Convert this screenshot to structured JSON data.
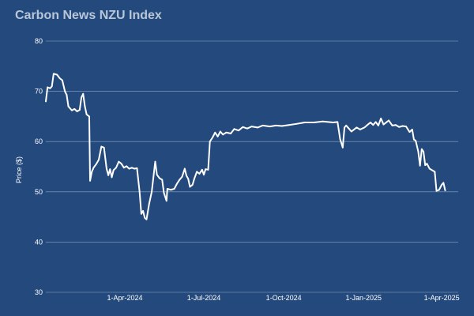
{
  "chart_data": {
    "type": "line",
    "title": "Carbon News NZU Index",
    "xlabel": "",
    "ylabel": "Price ($)",
    "ylim": [
      30,
      80
    ],
    "yticks": [
      30,
      40,
      50,
      60,
      70,
      80
    ],
    "xlim": [
      "2024-01-01",
      "2025-04-20"
    ],
    "xticks": [
      {
        "date": "2024-04-01",
        "label": "1-Apr-2024"
      },
      {
        "date": "2024-07-01",
        "label": "1-Jul-2024"
      },
      {
        "date": "2024-10-01",
        "label": "1-Oct-2024"
      },
      {
        "date": "2025-01-01",
        "label": "1-Jan-2025"
      },
      {
        "date": "2025-04-01",
        "label": "1-Apr-2025"
      }
    ],
    "grid": true,
    "legend": "none",
    "colors": {
      "background": "#244a7d",
      "line": "#ffffff",
      "grid": "#8ea6c4",
      "title": "#b9c6d8"
    },
    "series": [
      {
        "points": [
          [
            "2024-01-01",
            68.0
          ],
          [
            "2024-01-03",
            70.8
          ],
          [
            "2024-01-06",
            70.6
          ],
          [
            "2024-01-08",
            71.0
          ],
          [
            "2024-01-10",
            73.5
          ],
          [
            "2024-01-14",
            73.3
          ],
          [
            "2024-01-17",
            72.6
          ],
          [
            "2024-01-20",
            72.2
          ],
          [
            "2024-01-23",
            70.0
          ],
          [
            "2024-01-25",
            69.3
          ],
          [
            "2024-01-27",
            67.0
          ],
          [
            "2024-01-29",
            66.6
          ],
          [
            "2024-01-31",
            66.2
          ],
          [
            "2024-02-03",
            66.5
          ],
          [
            "2024-02-06",
            66.0
          ],
          [
            "2024-02-09",
            66.3
          ],
          [
            "2024-02-11",
            68.8
          ],
          [
            "2024-02-13",
            69.5
          ],
          [
            "2024-02-15",
            67.0
          ],
          [
            "2024-02-17",
            65.4
          ],
          [
            "2024-02-20",
            65.0
          ],
          [
            "2024-02-21",
            52.2
          ],
          [
            "2024-02-23",
            54.0
          ],
          [
            "2024-02-25",
            54.8
          ],
          [
            "2024-02-28",
            55.5
          ],
          [
            "2024-03-02",
            56.4
          ],
          [
            "2024-03-05",
            59.0
          ],
          [
            "2024-03-08",
            58.8
          ],
          [
            "2024-03-11",
            54.6
          ],
          [
            "2024-03-13",
            53.3
          ],
          [
            "2024-03-15",
            54.5
          ],
          [
            "2024-03-17",
            52.9
          ],
          [
            "2024-03-19",
            54.3
          ],
          [
            "2024-03-22",
            54.8
          ],
          [
            "2024-03-25",
            56.0
          ],
          [
            "2024-03-28",
            55.6
          ],
          [
            "2024-03-31",
            54.8
          ],
          [
            "2024-04-03",
            55.1
          ],
          [
            "2024-04-06",
            54.6
          ],
          [
            "2024-04-09",
            54.8
          ],
          [
            "2024-04-12",
            54.6
          ],
          [
            "2024-04-15",
            54.7
          ],
          [
            "2024-04-18",
            50.0
          ],
          [
            "2024-04-20",
            45.6
          ],
          [
            "2024-04-22",
            46.2
          ],
          [
            "2024-04-24",
            44.8
          ],
          [
            "2024-04-26",
            44.5
          ],
          [
            "2024-04-29",
            47.6
          ],
          [
            "2024-05-02",
            50.0
          ],
          [
            "2024-05-06",
            56.0
          ],
          [
            "2024-05-08",
            53.4
          ],
          [
            "2024-05-11",
            52.7
          ],
          [
            "2024-05-14",
            52.4
          ],
          [
            "2024-05-16",
            49.8
          ],
          [
            "2024-05-19",
            48.2
          ],
          [
            "2024-05-20",
            50.6
          ],
          [
            "2024-05-24",
            50.4
          ],
          [
            "2024-05-28",
            50.6
          ],
          [
            "2024-05-31",
            51.6
          ],
          [
            "2024-06-03",
            52.4
          ],
          [
            "2024-06-06",
            53.0
          ],
          [
            "2024-06-09",
            54.6
          ],
          [
            "2024-06-11",
            53.2
          ],
          [
            "2024-06-13",
            52.6
          ],
          [
            "2024-06-15",
            51.0
          ],
          [
            "2024-06-18",
            51.4
          ],
          [
            "2024-06-20",
            52.6
          ],
          [
            "2024-06-23",
            54.0
          ],
          [
            "2024-06-26",
            53.6
          ],
          [
            "2024-06-29",
            54.4
          ],
          [
            "2024-07-01",
            53.4
          ],
          [
            "2024-07-03",
            54.5
          ],
          [
            "2024-07-06",
            54.4
          ],
          [
            "2024-07-08",
            60.0
          ],
          [
            "2024-07-11",
            60.8
          ],
          [
            "2024-07-14",
            61.8
          ],
          [
            "2024-07-17",
            61.0
          ],
          [
            "2024-07-20",
            62.0
          ],
          [
            "2024-07-23",
            61.4
          ],
          [
            "2024-07-27",
            61.8
          ],
          [
            "2024-08-01",
            61.6
          ],
          [
            "2024-08-05",
            62.5
          ],
          [
            "2024-08-10",
            62.2
          ],
          [
            "2024-08-15",
            62.9
          ],
          [
            "2024-08-20",
            62.6
          ],
          [
            "2024-08-25",
            63.0
          ],
          [
            "2024-09-01",
            62.8
          ],
          [
            "2024-09-07",
            63.2
          ],
          [
            "2024-09-15",
            63.0
          ],
          [
            "2024-09-22",
            63.2
          ],
          [
            "2024-09-29",
            63.1
          ],
          [
            "2024-10-07",
            63.3
          ],
          [
            "2024-10-15",
            63.5
          ],
          [
            "2024-10-25",
            63.8
          ],
          [
            "2024-11-05",
            63.8
          ],
          [
            "2024-11-15",
            64.0
          ],
          [
            "2024-11-27",
            63.8
          ],
          [
            "2024-12-02",
            63.9
          ],
          [
            "2024-12-05",
            60.5
          ],
          [
            "2024-12-08",
            58.8
          ],
          [
            "2024-12-10",
            62.8
          ],
          [
            "2024-12-12",
            63.2
          ],
          [
            "2024-12-15",
            62.6
          ],
          [
            "2024-12-18",
            62.0
          ],
          [
            "2024-12-21",
            62.4
          ],
          [
            "2024-12-24",
            62.8
          ],
          [
            "2024-12-28",
            62.4
          ],
          [
            "2025-01-02",
            62.8
          ],
          [
            "2025-01-06",
            63.4
          ],
          [
            "2025-01-09",
            63.8
          ],
          [
            "2025-01-12",
            63.3
          ],
          [
            "2025-01-15",
            63.9
          ],
          [
            "2025-01-18",
            63.2
          ],
          [
            "2025-01-21",
            64.6
          ],
          [
            "2025-01-24",
            63.4
          ],
          [
            "2025-01-27",
            63.8
          ],
          [
            "2025-01-30",
            64.2
          ],
          [
            "2025-02-03",
            63.2
          ],
          [
            "2025-02-07",
            63.3
          ],
          [
            "2025-02-11",
            62.9
          ],
          [
            "2025-02-15",
            63.1
          ],
          [
            "2025-02-19",
            63.0
          ],
          [
            "2025-02-23",
            61.9
          ],
          [
            "2025-02-26",
            62.4
          ],
          [
            "2025-02-28",
            60.4
          ],
          [
            "2025-03-02",
            60.2
          ],
          [
            "2025-03-05",
            58.0
          ],
          [
            "2025-03-07",
            55.2
          ],
          [
            "2025-03-09",
            58.5
          ],
          [
            "2025-03-11",
            58.0
          ],
          [
            "2025-03-13",
            55.3
          ],
          [
            "2025-03-15",
            55.6
          ],
          [
            "2025-03-18",
            54.6
          ],
          [
            "2025-03-21",
            54.3
          ],
          [
            "2025-03-24",
            54.0
          ],
          [
            "2025-03-26",
            50.2
          ],
          [
            "2025-03-29",
            50.4
          ],
          [
            "2025-04-01",
            51.4
          ],
          [
            "2025-04-03",
            51.8
          ],
          [
            "2025-04-05",
            50.3
          ]
        ]
      }
    ]
  }
}
